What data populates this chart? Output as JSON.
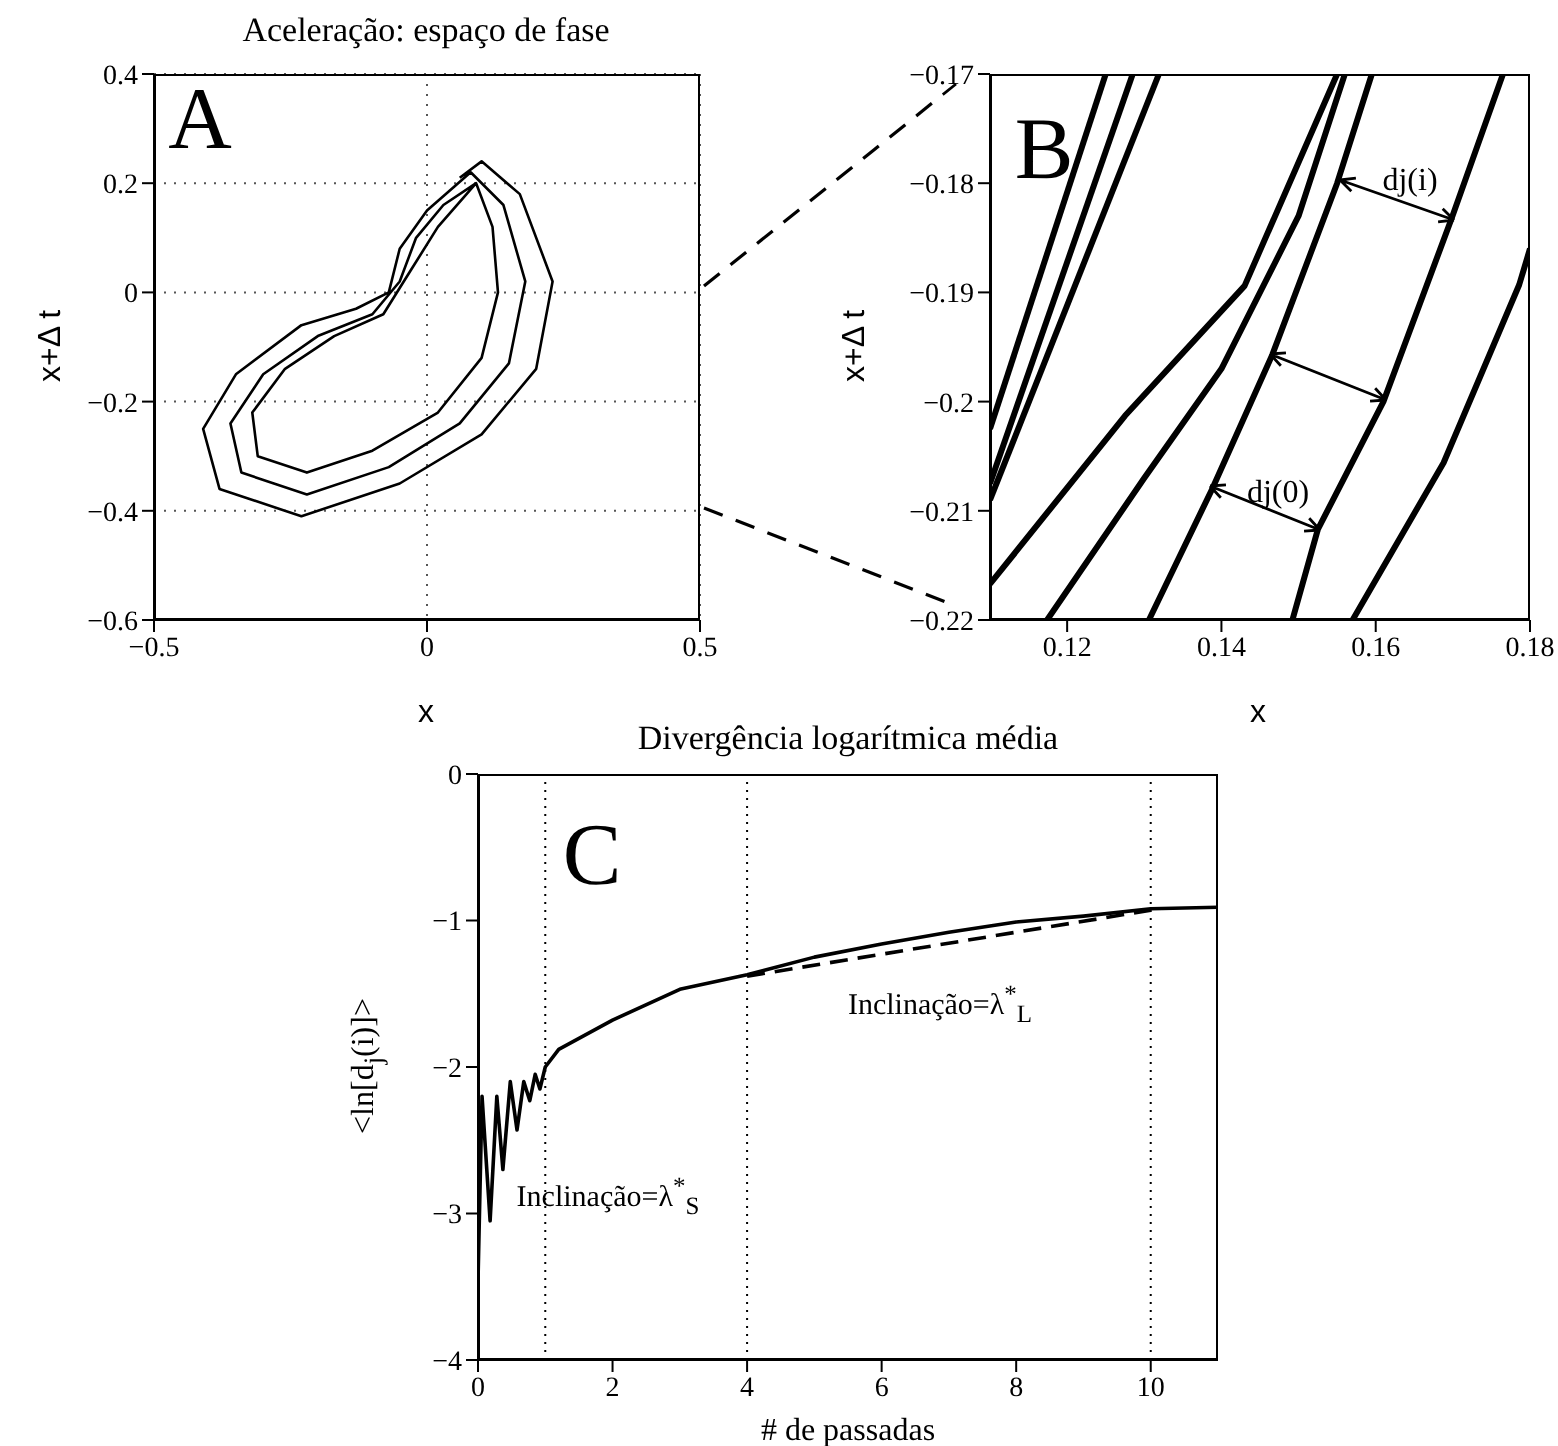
{
  "chart_data": [
    {
      "type": "line",
      "title": "Aceleração: espaço de fase",
      "xlabel": "x",
      "ylabel": "x+Δ t",
      "annotations": [
        "A"
      ],
      "xlim": [
        -0.5,
        0.5
      ],
      "xticks": [
        -0.5,
        0,
        0.5
      ],
      "ylim": [
        -0.6,
        0.4
      ],
      "yticks": [
        -0.6,
        -0.4,
        -0.2,
        0,
        0.2,
        0.4
      ],
      "grid": true,
      "series": [
        {
          "color": "#000000",
          "x": [
            0.06,
            0.1,
            0.17,
            0.23,
            0.2,
            0.1,
            -0.05,
            -0.23,
            -0.38,
            -0.41,
            -0.35,
            -0.23,
            -0.13,
            -0.07,
            -0.05,
            0,
            0.08,
            0.14,
            0.18,
            0.15,
            0.06,
            -0.07,
            -0.22,
            -0.34,
            -0.36,
            -0.3,
            -0.2,
            -0.1,
            -0.05,
            -0.02,
            0.03,
            0.09,
            0.12,
            0.13,
            0.1,
            0.02,
            -0.1,
            -0.22,
            -0.31,
            -0.32,
            -0.26,
            -0.17,
            -0.08,
            -0.03,
            0.02,
            0.09
          ],
          "values": [
            0.21,
            0.24,
            0.18,
            0.02,
            -0.14,
            -0.26,
            -0.35,
            -0.41,
            -0.36,
            -0.25,
            -0.15,
            -0.06,
            -0.03,
            0,
            0.08,
            0.15,
            0.22,
            0.16,
            0.02,
            -0.13,
            -0.24,
            -0.32,
            -0.37,
            -0.33,
            -0.24,
            -0.15,
            -0.08,
            -0.04,
            0.02,
            0.1,
            0.16,
            0.2,
            0.12,
            0,
            -0.12,
            -0.22,
            -0.29,
            -0.33,
            -0.3,
            -0.22,
            -0.14,
            -0.08,
            -0.04,
            0.04,
            0.12,
            0.2
          ]
        }
      ]
    },
    {
      "type": "line",
      "xlabel": "x",
      "ylabel": "x+Δ t",
      "annotations": [
        "B",
        "dj(i)",
        "dj(0)"
      ],
      "xlim": [
        0.11,
        0.18
      ],
      "xticks": [
        0.12,
        0.14,
        0.16,
        0.18
      ],
      "ylim": [
        -0.22,
        -0.17
      ],
      "yticks": [
        -0.22,
        -0.21,
        -0.2,
        -0.19,
        -0.18,
        -0.17
      ],
      "series": [
        {
          "color": "#000000",
          "x": [
            0.11,
            0.125
          ],
          "values": [
            -0.2025,
            -0.17
          ]
        },
        {
          "color": "#000000",
          "x": [
            0.11,
            0.1285
          ],
          "values": [
            -0.2075,
            -0.17
          ]
        },
        {
          "color": "#000000",
          "x": [
            0.11,
            0.1319
          ],
          "values": [
            -0.209,
            -0.17
          ]
        },
        {
          "color": "#000000",
          "x": [
            0.11,
            0.1275,
            0.143,
            0.155
          ],
          "values": [
            -0.2167,
            -0.2013,
            -0.1894,
            -0.17
          ]
        },
        {
          "color": "#000000",
          "x": [
            0.1174,
            0.13,
            0.14,
            0.15,
            0.156
          ],
          "values": [
            -0.22,
            -0.207,
            -0.197,
            -0.183,
            -0.17
          ]
        },
        {
          "color": "#000000",
          "x": [
            0.1306,
            0.1388,
            0.1466,
            0.155,
            0.1595
          ],
          "values": [
            -0.22,
            -0.208,
            -0.1957,
            -0.18,
            -0.17
          ]
        },
        {
          "color": "#000000",
          "x": [
            0.1492,
            0.1525,
            0.161,
            0.1698,
            0.1765
          ],
          "values": [
            -0.22,
            -0.2117,
            -0.2,
            -0.1833,
            -0.17
          ]
        },
        {
          "color": "#000000",
          "x": [
            0.157,
            0.1688,
            0.1786,
            0.18
          ],
          "values": [
            -0.22,
            -0.2056,
            -0.1893,
            -0.186
          ]
        }
      ]
    },
    {
      "type": "line",
      "title": "Divergência logarítmica média",
      "xlabel": "# de passadas",
      "ylabel": "<ln[d$_{j}$(i)]>",
      "annotations": [
        "C",
        "Inclinação=λ$^{*}$$_{S}$",
        "Inclinação=λ$^{*}$$_{L}$"
      ],
      "xlim": [
        0,
        11
      ],
      "xticks": [
        0,
        2,
        4,
        6,
        8,
        10
      ],
      "ylim": [
        -4,
        0
      ],
      "yticks": [
        -4,
        -3,
        -2,
        -1,
        0
      ],
      "ref_lines": [
        {
          "axis": "x",
          "value": 1,
          "color": "#000000",
          "line_style": "dotted"
        },
        {
          "axis": "x",
          "value": 4,
          "color": "#000000",
          "line_style": "dotted"
        },
        {
          "axis": "x",
          "value": 10,
          "color": "#000000",
          "line_style": "dotted"
        }
      ],
      "series": [
        {
          "color": "#000000",
          "line_style": "solid",
          "x": [
            0,
            0.06,
            0.18,
            0.28,
            0.37,
            0.48,
            0.58,
            0.68,
            0.77,
            0.85,
            0.92,
            1.0,
            1.2,
            2,
            3,
            4,
            5,
            6,
            7,
            8,
            9,
            10,
            11
          ],
          "values": [
            -3.46,
            -2.2,
            -3.05,
            -2.2,
            -2.7,
            -2.1,
            -2.43,
            -2.1,
            -2.23,
            -2.05,
            -2.15,
            -2.0,
            -1.88,
            -1.68,
            -1.47,
            -1.37,
            -1.25,
            -1.16,
            -1.08,
            -1.01,
            -0.97,
            -0.92,
            -0.91
          ]
        },
        {
          "color": "#000000",
          "line_style": "dashed",
          "x": [
            4,
            10
          ],
          "values": [
            -1.38,
            -0.93
          ]
        }
      ]
    }
  ]
}
